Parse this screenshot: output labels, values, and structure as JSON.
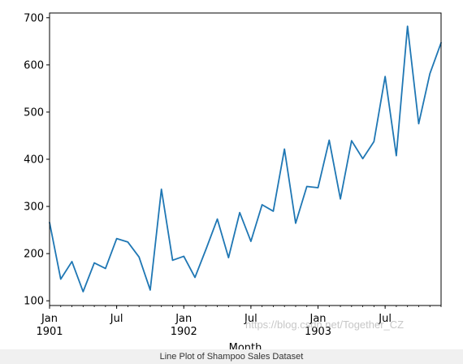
{
  "chart_data": {
    "type": "line",
    "xlabel": "Month",
    "ylabel": "",
    "title": "",
    "ylim": [
      90,
      710
    ],
    "yticks": [
      100,
      200,
      300,
      400,
      500,
      600,
      700
    ],
    "x": [
      "1901-01",
      "1901-02",
      "1901-03",
      "1901-04",
      "1901-05",
      "1901-06",
      "1901-07",
      "1901-08",
      "1901-09",
      "1901-10",
      "1901-11",
      "1901-12",
      "1902-01",
      "1902-02",
      "1902-03",
      "1902-04",
      "1902-05",
      "1902-06",
      "1902-07",
      "1902-08",
      "1902-09",
      "1902-10",
      "1902-11",
      "1902-12",
      "1903-01",
      "1903-02",
      "1903-03",
      "1903-04",
      "1903-05",
      "1903-06",
      "1903-07",
      "1903-08",
      "1903-09",
      "1903-10",
      "1903-11",
      "1903-12"
    ],
    "series": [
      {
        "color": "#1f77b4",
        "values": [
          266.0,
          145.9,
          183.1,
          119.3,
          180.3,
          168.5,
          231.8,
          224.5,
          192.8,
          122.9,
          336.5,
          185.9,
          194.3,
          149.5,
          210.1,
          273.3,
          191.4,
          287.0,
          226.0,
          303.6,
          289.9,
          421.6,
          264.5,
          342.3,
          339.7,
          440.4,
          315.9,
          439.3,
          401.3,
          437.4,
          575.5,
          407.6,
          682.0,
          475.3,
          581.3,
          646.9
        ]
      }
    ],
    "major_ticks": [
      {
        "index": 0,
        "label": "Jan",
        "sublabel": "1901"
      },
      {
        "index": 6,
        "label": "Jul",
        "sublabel": ""
      },
      {
        "index": 12,
        "label": "Jan",
        "sublabel": "1902"
      },
      {
        "index": 18,
        "label": "Jul",
        "sublabel": ""
      },
      {
        "index": 24,
        "label": "Jan",
        "sublabel": "1903"
      },
      {
        "index": 30,
        "label": "Jul",
        "sublabel": ""
      }
    ]
  },
  "caption": "Line Plot of Shampoo Sales Dataset",
  "watermark": "https://blog.csdn.net/Together_CZ"
}
